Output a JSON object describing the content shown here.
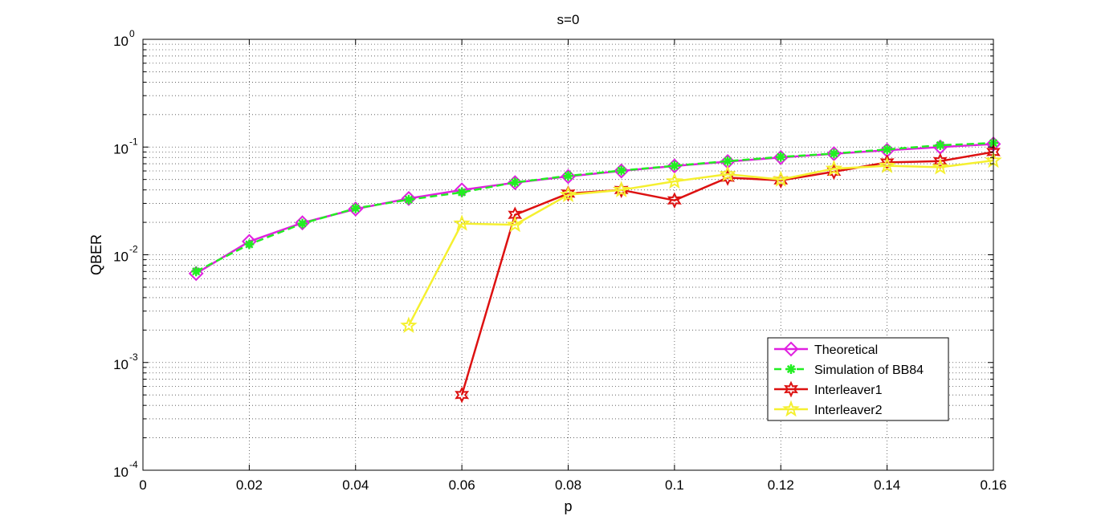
{
  "chart_data": {
    "type": "line",
    "title": "s=0",
    "xlabel": "p",
    "ylabel": "QBER",
    "xlim": [
      0,
      0.16
    ],
    "ylim": [
      0.0001,
      1
    ],
    "yscale": "log",
    "grid": true,
    "legend_position": "lower-right",
    "x_ticks": [
      "0",
      "0.02",
      "0.04",
      "0.06",
      "0.08",
      "0.1",
      "0.12",
      "0.14",
      "0.16"
    ],
    "y_ticks": [
      {
        "base": "10",
        "exp": "-4"
      },
      {
        "base": "10",
        "exp": "-3"
      },
      {
        "base": "10",
        "exp": "-2"
      },
      {
        "base": "10",
        "exp": "-1"
      },
      {
        "base": "10",
        "exp": "0"
      }
    ],
    "series": [
      {
        "name": "Theoretical",
        "color": "#E020E0",
        "marker": "diamond",
        "dash": "solid",
        "x": [
          0.01,
          0.02,
          0.03,
          0.04,
          0.05,
          0.06,
          0.07,
          0.08,
          0.09,
          0.1,
          0.11,
          0.12,
          0.13,
          0.14,
          0.15,
          0.16
        ],
        "y": [
          0.0067,
          0.0133,
          0.0198,
          0.0266,
          0.0333,
          0.04,
          0.0467,
          0.0533,
          0.06,
          0.0667,
          0.0733,
          0.08,
          0.0867,
          0.0933,
          0.1,
          0.1067
        ]
      },
      {
        "name": "Simulation of BB84",
        "color": "#22EE22",
        "marker": "asterisk",
        "dash": "dashed",
        "x": [
          0.01,
          0.02,
          0.03,
          0.04,
          0.05,
          0.06,
          0.07,
          0.08,
          0.09,
          0.1,
          0.11,
          0.12,
          0.13,
          0.14,
          0.15,
          0.16
        ],
        "y": [
          0.007,
          0.0125,
          0.0195,
          0.027,
          0.0325,
          0.038,
          0.047,
          0.054,
          0.0605,
          0.067,
          0.074,
          0.081,
          0.087,
          0.095,
          0.104,
          0.109
        ]
      },
      {
        "name": "Interleaver1",
        "color": "#DD1111",
        "marker": "hexagram",
        "dash": "solid",
        "x": [
          0.06,
          0.07,
          0.08,
          0.09,
          0.1,
          0.11,
          0.12,
          0.13,
          0.14,
          0.15,
          0.16
        ],
        "y": [
          0.0005,
          0.0235,
          0.037,
          0.04,
          0.032,
          0.052,
          0.049,
          0.059,
          0.072,
          0.074,
          0.09
        ]
      },
      {
        "name": "Interleaver2",
        "color": "#F5F030",
        "marker": "pentagram",
        "dash": "solid",
        "x": [
          0.05,
          0.06,
          0.07,
          0.08,
          0.09,
          0.1,
          0.11,
          0.12,
          0.13,
          0.14,
          0.15,
          0.16
        ],
        "y": [
          0.0022,
          0.0195,
          0.019,
          0.036,
          0.04,
          0.048,
          0.056,
          0.05,
          0.063,
          0.067,
          0.065,
          0.075
        ]
      }
    ]
  }
}
